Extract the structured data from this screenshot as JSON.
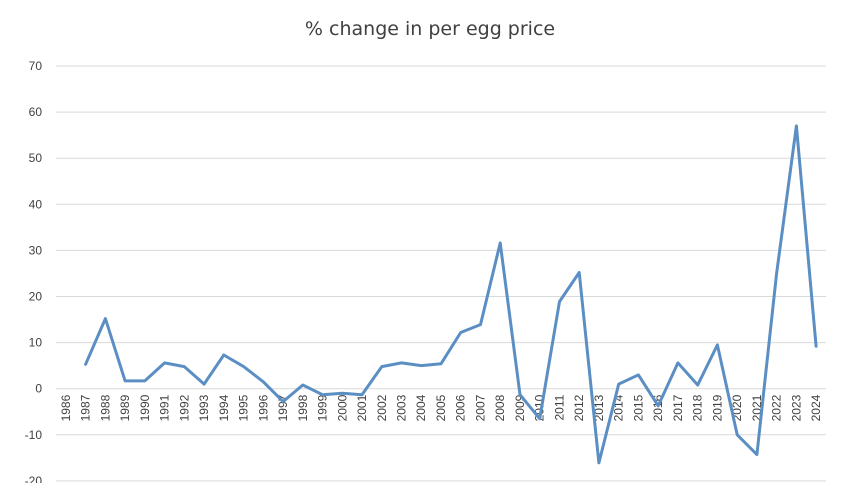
{
  "chart_data": {
    "type": "line",
    "title": "% change in per egg price",
    "xlabel": "",
    "ylabel": "",
    "ylim": [
      -20,
      70
    ],
    "yticks": [
      -20,
      -10,
      0,
      10,
      20,
      30,
      40,
      50,
      60,
      70
    ],
    "grid": true,
    "legend": "none",
    "categories": [
      "1986",
      "1987",
      "1988",
      "1989",
      "1990",
      "1991",
      "1992",
      "1993",
      "1994",
      "1995",
      "1996",
      "1997",
      "1998",
      "1999",
      "2000",
      "2001",
      "2002",
      "2003",
      "2004",
      "2005",
      "2006",
      "2007",
      "2008",
      "2009",
      "2010",
      "2011",
      "2012",
      "2013",
      "2014",
      "2015",
      "2016",
      "2017",
      "2018",
      "2019",
      "2020",
      "2021",
      "2022",
      "2023",
      "2024"
    ],
    "series": [
      {
        "color": "#5b8fc4",
        "values": [
          null,
          5.3,
          15.2,
          1.7,
          1.7,
          5.6,
          4.8,
          1.0,
          7.3,
          4.8,
          1.5,
          -2.8,
          0.8,
          -1.3,
          -1.0,
          -1.3,
          4.8,
          5.6,
          5.0,
          5.4,
          12.2,
          13.9,
          31.6,
          -1.3,
          -6.5,
          18.9,
          25.2,
          -16.1,
          1.0,
          3.0,
          -3.7,
          5.6,
          0.8,
          9.5,
          -10.0,
          -14.3,
          25.0,
          57.0,
          9.2
        ]
      }
    ]
  }
}
